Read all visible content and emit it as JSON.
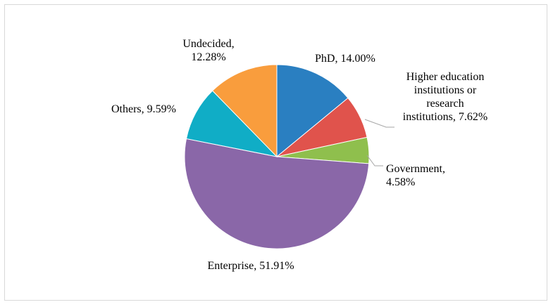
{
  "chart_data": {
    "type": "pie",
    "title": "",
    "start_angle_deg": 0,
    "direction": "clockwise",
    "slices": [
      {
        "name": "PhD",
        "value": 14.0,
        "label_lines": [
          "PhD, 14.00%"
        ],
        "color": "#2a7fc1"
      },
      {
        "name": "Higher education institutions or research institutions",
        "value": 7.62,
        "label_lines": [
          "Higher education",
          "institutions or",
          "research",
          "institutions, 7.62%"
        ],
        "color": "#e0534c"
      },
      {
        "name": "Government",
        "value": 4.58,
        "label_lines": [
          "Government,",
          "4.58%"
        ],
        "color": "#8fbf4d"
      },
      {
        "name": "Enterprise",
        "value": 51.91,
        "label_lines": [
          "Enterprise, 51.91%"
        ],
        "color": "#8a67a8"
      },
      {
        "name": "Others",
        "value": 9.59,
        "label_lines": [
          "Others, 9.59%"
        ],
        "color": "#10adc6"
      },
      {
        "name": "Undecided",
        "value": 12.28,
        "label_lines": [
          "Undecided,",
          "12.28%"
        ],
        "color": "#f99d3d"
      }
    ],
    "legend": "none",
    "data_labels": "outside"
  }
}
